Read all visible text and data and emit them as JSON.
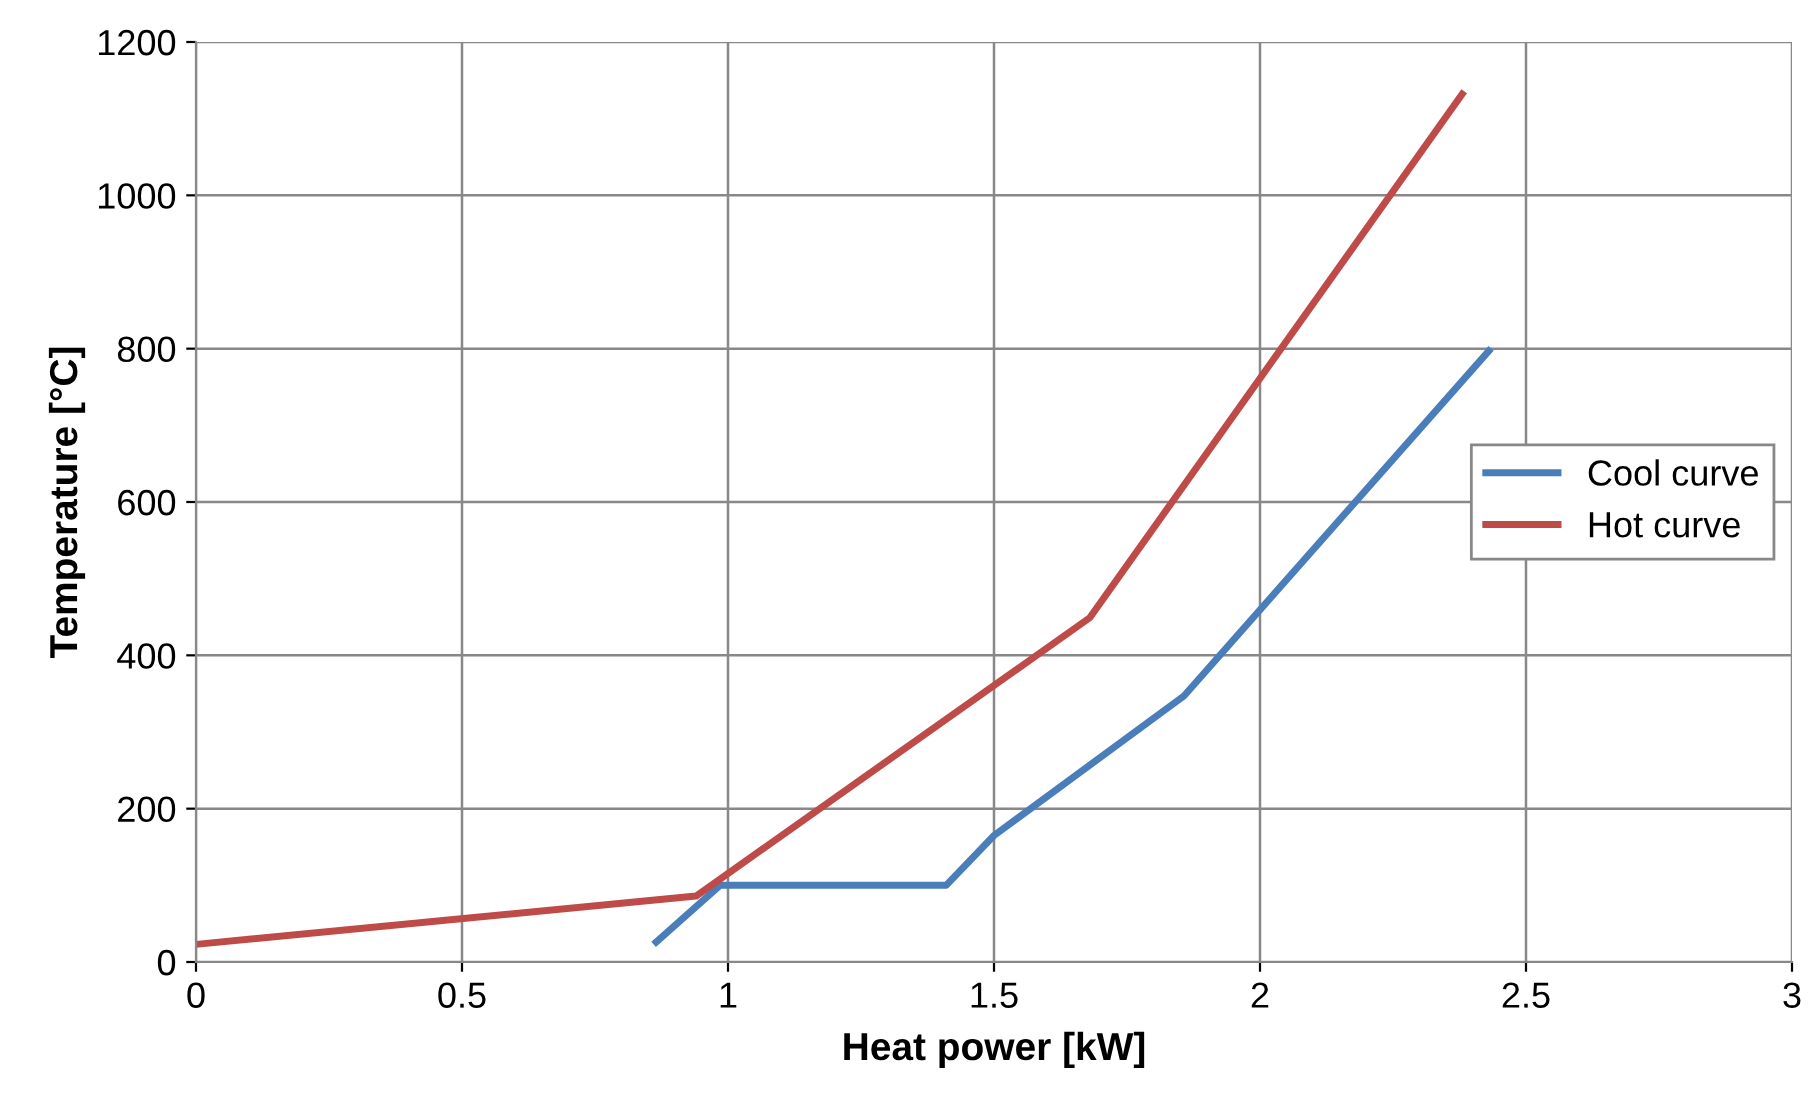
{
  "chart_data": {
    "type": "line",
    "xlabel": "Heat power [kW]",
    "ylabel": "Temperature [°C]",
    "xlim": [
      0,
      3
    ],
    "ylim": [
      0,
      1200
    ],
    "xticks": [
      0,
      0.5,
      1,
      1.5,
      2,
      2.5,
      3
    ],
    "yticks": [
      0,
      200,
      400,
      600,
      800,
      1000,
      1200
    ],
    "grid": true,
    "legend": "right",
    "marker": "none",
    "line_style": "solid",
    "series": [
      {
        "name": "Cool curve",
        "color": "#4a7ebb",
        "x": [
          0.865,
          0.985,
          1.41,
          1.5,
          1.857,
          2.43
        ],
        "values": [
          26,
          100,
          100,
          165,
          347,
          797
        ]
      },
      {
        "name": "Hot curve",
        "color": "#be4b48",
        "x": [
          0,
          0.94,
          1.68,
          2.38
        ],
        "values": [
          23,
          86,
          449,
          1132
        ]
      }
    ]
  }
}
